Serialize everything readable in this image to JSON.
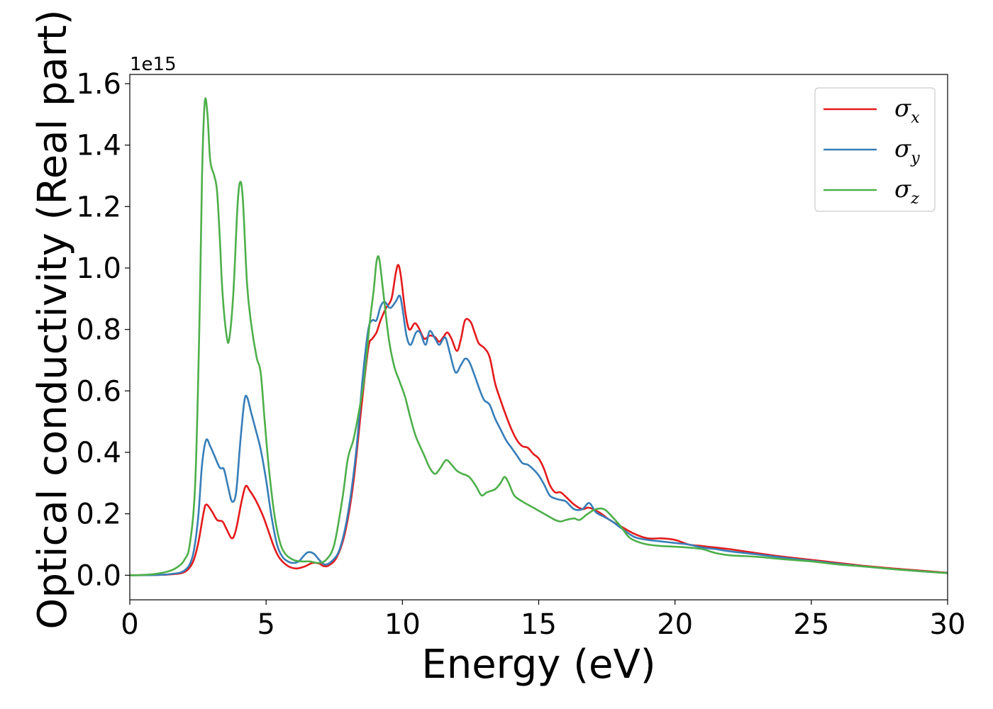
{
  "chart_data": {
    "type": "line",
    "title": "",
    "xlabel": "Energy (eV)",
    "ylabel": "Optical conductivity (Real part)",
    "y_offset_label": "1e15",
    "xlim": [
      0,
      30
    ],
    "ylim": [
      -0.08,
      1.63
    ],
    "x_ticks": [
      0,
      5,
      10,
      15,
      20,
      25,
      30
    ],
    "x_tick_labels": [
      "0",
      "5",
      "10",
      "15",
      "20",
      "25",
      "30"
    ],
    "y_ticks": [
      0.0,
      0.2,
      0.4,
      0.6,
      0.8,
      1.0,
      1.2,
      1.4,
      1.6
    ],
    "y_tick_labels": [
      "0.0",
      "0.2",
      "0.4",
      "0.6",
      "0.8",
      "1.0",
      "1.2",
      "1.4",
      "1.6"
    ],
    "grid": false,
    "legend_position": "top-right",
    "series": [
      {
        "name": "σx",
        "symbol": "σ",
        "subscript": "x",
        "color": "#e41a1c",
        "points": [
          [
            0,
            0
          ],
          [
            1,
            0.001
          ],
          [
            1.5,
            0.003
          ],
          [
            2,
            0.01
          ],
          [
            2.3,
            0.04
          ],
          [
            2.5,
            0.1
          ],
          [
            2.7,
            0.2
          ],
          [
            2.8,
            0.23
          ],
          [
            3,
            0.21
          ],
          [
            3.2,
            0.18
          ],
          [
            3.4,
            0.175
          ],
          [
            3.55,
            0.15
          ],
          [
            3.75,
            0.12
          ],
          [
            3.9,
            0.15
          ],
          [
            4.1,
            0.24
          ],
          [
            4.25,
            0.29
          ],
          [
            4.4,
            0.275
          ],
          [
            4.55,
            0.255
          ],
          [
            4.7,
            0.23
          ],
          [
            4.9,
            0.19
          ],
          [
            5.1,
            0.14
          ],
          [
            5.3,
            0.09
          ],
          [
            5.5,
            0.055
          ],
          [
            5.8,
            0.03
          ],
          [
            6.1,
            0.022
          ],
          [
            6.4,
            0.028
          ],
          [
            6.7,
            0.04
          ],
          [
            6.95,
            0.038
          ],
          [
            7.1,
            0.03
          ],
          [
            7.3,
            0.032
          ],
          [
            7.6,
            0.06
          ],
          [
            7.9,
            0.14
          ],
          [
            8.2,
            0.3
          ],
          [
            8.5,
            0.55
          ],
          [
            8.75,
            0.74
          ],
          [
            8.9,
            0.77
          ],
          [
            9.05,
            0.79
          ],
          [
            9.2,
            0.83
          ],
          [
            9.4,
            0.87
          ],
          [
            9.6,
            0.9
          ],
          [
            9.75,
            0.98
          ],
          [
            9.85,
            1.01
          ],
          [
            9.95,
            0.97
          ],
          [
            10.1,
            0.86
          ],
          [
            10.25,
            0.8
          ],
          [
            10.45,
            0.82
          ],
          [
            10.6,
            0.805
          ],
          [
            10.8,
            0.77
          ],
          [
            11,
            0.78
          ],
          [
            11.2,
            0.775
          ],
          [
            11.35,
            0.76
          ],
          [
            11.5,
            0.775
          ],
          [
            11.65,
            0.79
          ],
          [
            11.8,
            0.77
          ],
          [
            12,
            0.73
          ],
          [
            12.15,
            0.77
          ],
          [
            12.3,
            0.83
          ],
          [
            12.5,
            0.825
          ],
          [
            12.65,
            0.79
          ],
          [
            12.8,
            0.755
          ],
          [
            13,
            0.74
          ],
          [
            13.2,
            0.71
          ],
          [
            13.4,
            0.625
          ],
          [
            13.6,
            0.57
          ],
          [
            13.8,
            0.52
          ],
          [
            14,
            0.475
          ],
          [
            14.2,
            0.44
          ],
          [
            14.4,
            0.42
          ],
          [
            14.6,
            0.415
          ],
          [
            14.8,
            0.395
          ],
          [
            15,
            0.38
          ],
          [
            15.2,
            0.345
          ],
          [
            15.4,
            0.295
          ],
          [
            15.6,
            0.27
          ],
          [
            15.8,
            0.27
          ],
          [
            16,
            0.255
          ],
          [
            16.3,
            0.23
          ],
          [
            16.6,
            0.215
          ],
          [
            16.8,
            0.22
          ],
          [
            17,
            0.215
          ],
          [
            17.3,
            0.2
          ],
          [
            17.6,
            0.18
          ],
          [
            18,
            0.16
          ],
          [
            18.5,
            0.135
          ],
          [
            19,
            0.12
          ],
          [
            19.5,
            0.12
          ],
          [
            20,
            0.115
          ],
          [
            20.5,
            0.1
          ],
          [
            21,
            0.095
          ],
          [
            21.5,
            0.09
          ],
          [
            22,
            0.085
          ],
          [
            23,
            0.072
          ],
          [
            24,
            0.06
          ],
          [
            25,
            0.05
          ],
          [
            26,
            0.04
          ],
          [
            27,
            0.03
          ],
          [
            28,
            0.022
          ],
          [
            29,
            0.015
          ],
          [
            30,
            0.008
          ]
        ]
      },
      {
        "name": "σy",
        "symbol": "σ",
        "subscript": "y",
        "color": "#377eb8",
        "points": [
          [
            0,
            0
          ],
          [
            1,
            0.001
          ],
          [
            1.5,
            0.004
          ],
          [
            2,
            0.015
          ],
          [
            2.3,
            0.06
          ],
          [
            2.5,
            0.18
          ],
          [
            2.65,
            0.36
          ],
          [
            2.8,
            0.44
          ],
          [
            2.95,
            0.42
          ],
          [
            3.1,
            0.39
          ],
          [
            3.3,
            0.35
          ],
          [
            3.45,
            0.345
          ],
          [
            3.6,
            0.29
          ],
          [
            3.75,
            0.24
          ],
          [
            3.9,
            0.27
          ],
          [
            4.05,
            0.43
          ],
          [
            4.2,
            0.565
          ],
          [
            4.3,
            0.58
          ],
          [
            4.45,
            0.53
          ],
          [
            4.6,
            0.48
          ],
          [
            4.8,
            0.41
          ],
          [
            5,
            0.31
          ],
          [
            5.2,
            0.19
          ],
          [
            5.4,
            0.1
          ],
          [
            5.6,
            0.06
          ],
          [
            5.8,
            0.045
          ],
          [
            6,
            0.04
          ],
          [
            6.2,
            0.045
          ],
          [
            6.4,
            0.065
          ],
          [
            6.55,
            0.075
          ],
          [
            6.75,
            0.07
          ],
          [
            6.95,
            0.05
          ],
          [
            7.15,
            0.035
          ],
          [
            7.4,
            0.045
          ],
          [
            7.7,
            0.085
          ],
          [
            8,
            0.2
          ],
          [
            8.3,
            0.4
          ],
          [
            8.55,
            0.65
          ],
          [
            8.75,
            0.8
          ],
          [
            8.9,
            0.83
          ],
          [
            9.05,
            0.83
          ],
          [
            9.2,
            0.875
          ],
          [
            9.35,
            0.89
          ],
          [
            9.55,
            0.87
          ],
          [
            9.75,
            0.89
          ],
          [
            9.9,
            0.91
          ],
          [
            10,
            0.87
          ],
          [
            10.15,
            0.78
          ],
          [
            10.3,
            0.75
          ],
          [
            10.5,
            0.79
          ],
          [
            10.65,
            0.79
          ],
          [
            10.85,
            0.75
          ],
          [
            11,
            0.795
          ],
          [
            11.2,
            0.77
          ],
          [
            11.35,
            0.75
          ],
          [
            11.5,
            0.77
          ],
          [
            11.6,
            0.77
          ],
          [
            11.75,
            0.72
          ],
          [
            11.95,
            0.66
          ],
          [
            12.15,
            0.685
          ],
          [
            12.3,
            0.705
          ],
          [
            12.45,
            0.695
          ],
          [
            12.65,
            0.65
          ],
          [
            12.85,
            0.6
          ],
          [
            13,
            0.57
          ],
          [
            13.2,
            0.555
          ],
          [
            13.4,
            0.51
          ],
          [
            13.6,
            0.475
          ],
          [
            13.8,
            0.44
          ],
          [
            14,
            0.415
          ],
          [
            14.2,
            0.39
          ],
          [
            14.4,
            0.365
          ],
          [
            14.6,
            0.36
          ],
          [
            14.8,
            0.345
          ],
          [
            15,
            0.325
          ],
          [
            15.2,
            0.295
          ],
          [
            15.4,
            0.26
          ],
          [
            15.6,
            0.25
          ],
          [
            15.8,
            0.245
          ],
          [
            16,
            0.24
          ],
          [
            16.3,
            0.215
          ],
          [
            16.6,
            0.215
          ],
          [
            16.85,
            0.235
          ],
          [
            17.1,
            0.205
          ],
          [
            17.4,
            0.19
          ],
          [
            17.7,
            0.175
          ],
          [
            18,
            0.155
          ],
          [
            18.5,
            0.125
          ],
          [
            19,
            0.115
          ],
          [
            19.5,
            0.11
          ],
          [
            20,
            0.105
          ],
          [
            20.5,
            0.1
          ],
          [
            21,
            0.09
          ],
          [
            21.5,
            0.085
          ],
          [
            22,
            0.078
          ],
          [
            23,
            0.068
          ],
          [
            24,
            0.057
          ],
          [
            25,
            0.047
          ],
          [
            26,
            0.037
          ],
          [
            27,
            0.028
          ],
          [
            28,
            0.02
          ],
          [
            29,
            0.013
          ],
          [
            30,
            0.007
          ]
        ]
      },
      {
        "name": "σz",
        "symbol": "σ",
        "subscript": "z",
        "color": "#4daf4a",
        "points": [
          [
            0,
            0
          ],
          [
            0.5,
            0.001
          ],
          [
            1,
            0.005
          ],
          [
            1.5,
            0.015
          ],
          [
            1.8,
            0.03
          ],
          [
            2,
            0.05
          ],
          [
            2.2,
            0.1
          ],
          [
            2.4,
            0.3
          ],
          [
            2.55,
            0.8
          ],
          [
            2.65,
            1.3
          ],
          [
            2.75,
            1.54
          ],
          [
            2.85,
            1.5
          ],
          [
            2.95,
            1.35
          ],
          [
            3.1,
            1.3
          ],
          [
            3.2,
            1.25
          ],
          [
            3.3,
            1.1
          ],
          [
            3.4,
            0.92
          ],
          [
            3.55,
            0.78
          ],
          [
            3.65,
            0.77
          ],
          [
            3.8,
            0.92
          ],
          [
            3.95,
            1.2
          ],
          [
            4.05,
            1.28
          ],
          [
            4.15,
            1.22
          ],
          [
            4.3,
            0.95
          ],
          [
            4.45,
            0.82
          ],
          [
            4.65,
            0.71
          ],
          [
            4.8,
            0.66
          ],
          [
            4.95,
            0.5
          ],
          [
            5.1,
            0.35
          ],
          [
            5.3,
            0.2
          ],
          [
            5.5,
            0.11
          ],
          [
            5.7,
            0.07
          ],
          [
            6,
            0.05
          ],
          [
            6.3,
            0.045
          ],
          [
            6.6,
            0.045
          ],
          [
            6.9,
            0.04
          ],
          [
            7.2,
            0.05
          ],
          [
            7.5,
            0.1
          ],
          [
            7.8,
            0.25
          ],
          [
            8,
            0.38
          ],
          [
            8.2,
            0.44
          ],
          [
            8.4,
            0.53
          ],
          [
            8.6,
            0.64
          ],
          [
            8.8,
            0.82
          ],
          [
            8.95,
            0.93
          ],
          [
            9.05,
            1.02
          ],
          [
            9.15,
            1.03
          ],
          [
            9.3,
            0.92
          ],
          [
            9.5,
            0.77
          ],
          [
            9.7,
            0.68
          ],
          [
            9.9,
            0.63
          ],
          [
            10.1,
            0.58
          ],
          [
            10.3,
            0.51
          ],
          [
            10.5,
            0.45
          ],
          [
            10.8,
            0.39
          ],
          [
            11,
            0.35
          ],
          [
            11.2,
            0.33
          ],
          [
            11.4,
            0.35
          ],
          [
            11.6,
            0.375
          ],
          [
            11.8,
            0.36
          ],
          [
            12,
            0.34
          ],
          [
            12.2,
            0.33
          ],
          [
            12.45,
            0.32
          ],
          [
            12.7,
            0.29
          ],
          [
            12.9,
            0.26
          ],
          [
            13.1,
            0.27
          ],
          [
            13.4,
            0.28
          ],
          [
            13.6,
            0.3
          ],
          [
            13.75,
            0.32
          ],
          [
            13.9,
            0.3
          ],
          [
            14.1,
            0.26
          ],
          [
            14.4,
            0.24
          ],
          [
            14.7,
            0.225
          ],
          [
            15,
            0.21
          ],
          [
            15.3,
            0.195
          ],
          [
            15.6,
            0.18
          ],
          [
            15.8,
            0.175
          ],
          [
            16,
            0.18
          ],
          [
            16.3,
            0.185
          ],
          [
            16.5,
            0.18
          ],
          [
            16.8,
            0.2
          ],
          [
            17.1,
            0.215
          ],
          [
            17.4,
            0.215
          ],
          [
            17.7,
            0.19
          ],
          [
            18,
            0.16
          ],
          [
            18.3,
            0.125
          ],
          [
            18.6,
            0.11
          ],
          [
            19,
            0.1
          ],
          [
            19.5,
            0.095
          ],
          [
            20,
            0.093
          ],
          [
            20.5,
            0.09
          ],
          [
            21,
            0.085
          ],
          [
            21.5,
            0.072
          ],
          [
            22,
            0.065
          ],
          [
            23,
            0.06
          ],
          [
            24,
            0.052
          ],
          [
            25,
            0.045
          ],
          [
            26,
            0.035
          ],
          [
            27,
            0.028
          ],
          [
            28,
            0.02
          ],
          [
            29,
            0.013
          ],
          [
            30,
            0.007
          ]
        ]
      }
    ]
  }
}
